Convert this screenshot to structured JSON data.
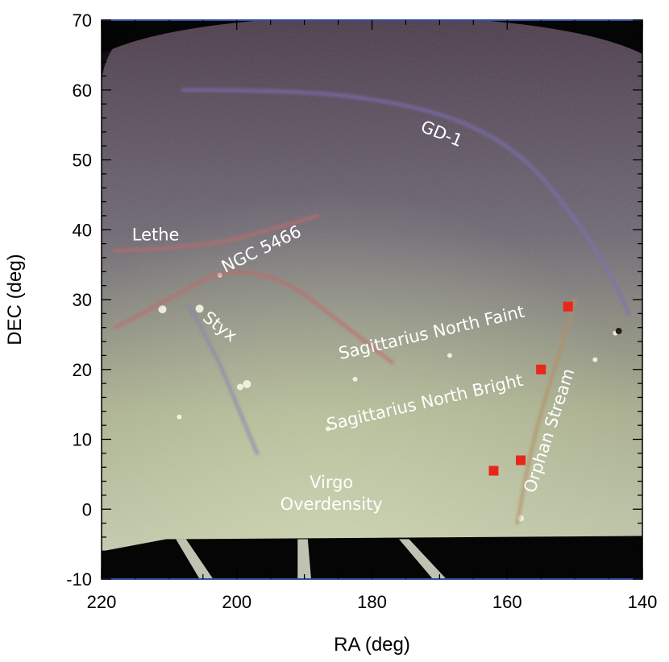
{
  "chart_data": {
    "type": "image",
    "xlabel": "RA (deg)",
    "ylabel": "DEC (deg)",
    "xlim": [
      220,
      140
    ],
    "ylim": [
      -10,
      70
    ],
    "x_ticks": [
      220,
      200,
      180,
      160,
      140
    ],
    "y_ticks": [
      -10,
      0,
      10,
      20,
      30,
      40,
      50,
      60,
      70
    ],
    "streams": [
      {
        "name": "GD-1",
        "color": "#8070b8",
        "points": [
          [
            208,
            60
          ],
          [
            190,
            60
          ],
          [
            175,
            58
          ],
          [
            165,
            55
          ],
          [
            157,
            50
          ],
          [
            151,
            43
          ],
          [
            146,
            36
          ],
          [
            142,
            28
          ]
        ]
      },
      {
        "name": "Lethe",
        "color": "#c06a6a",
        "points": [
          [
            218,
            37
          ],
          [
            205,
            37.5
          ],
          [
            195,
            40
          ],
          [
            188,
            42
          ]
        ]
      },
      {
        "name": "NGC 5466",
        "color": "#c06a6a",
        "points": [
          [
            218,
            26
          ],
          [
            210,
            30
          ],
          [
            202,
            34.5
          ],
          [
            193,
            33
          ],
          [
            185,
            27
          ],
          [
            177,
            21
          ]
        ]
      },
      {
        "name": "Styx",
        "color": "#8a84b0",
        "points": [
          [
            207,
            29
          ],
          [
            203,
            22
          ],
          [
            200,
            15
          ],
          [
            197,
            8
          ]
        ]
      },
      {
        "name": "Sagittarius North Faint",
        "color": "#a6a488",
        "points": []
      },
      {
        "name": "Sagittarius North Bright",
        "color": "#a6a488",
        "points": []
      },
      {
        "name": "Orphan Stream",
        "color": "#b48e66",
        "points": [
          [
            150,
            30
          ],
          [
            152,
            23
          ],
          [
            155,
            14
          ],
          [
            157,
            6
          ],
          [
            158.5,
            -2
          ]
        ]
      },
      {
        "name": "Virgo Overdensity",
        "color": "#b8c498",
        "points": []
      }
    ],
    "orphan_markers": [
      [
        151,
        29
      ],
      [
        155,
        20
      ],
      [
        158,
        7
      ],
      [
        162,
        5.5
      ]
    ],
    "marker_color": "#e8271a",
    "labels": [
      {
        "lines": [
          "GD-1"
        ],
        "ra": 170,
        "dec": 53,
        "rotate": 22
      },
      {
        "lines": [
          "Lethe"
        ],
        "ra": 212,
        "dec": 38.5,
        "rotate": 0
      },
      {
        "lines": [
          "NGC 5466"
        ],
        "ra": 196,
        "dec": 36.5,
        "rotate": -26
      },
      {
        "lines": [
          "Styx"
        ],
        "ra": 203,
        "dec": 25.5,
        "rotate": 38
      },
      {
        "lines": [
          "Sagittarius North Faint"
        ],
        "ra": 171,
        "dec": 24.5,
        "rotate": -13
      },
      {
        "lines": [
          "Sagittarius North Bright"
        ],
        "ra": 172,
        "dec": 14.5,
        "rotate": -13
      },
      {
        "lines": [
          "Orphan Stream"
        ],
        "ra": 153,
        "dec": 11,
        "rotate": -72
      },
      {
        "lines": [
          "Virgo",
          "Overdensity"
        ],
        "ra": 186,
        "dec": 1.5,
        "rotate": 0
      }
    ],
    "colors": {
      "sky_top": "#463446",
      "sky_mid": "#6a6470",
      "sky_low": "#a7ae8a",
      "sky_bottom": "#c5ccb0",
      "empty": "#050505",
      "label": "#ffffff",
      "axis": "#000000"
    }
  }
}
